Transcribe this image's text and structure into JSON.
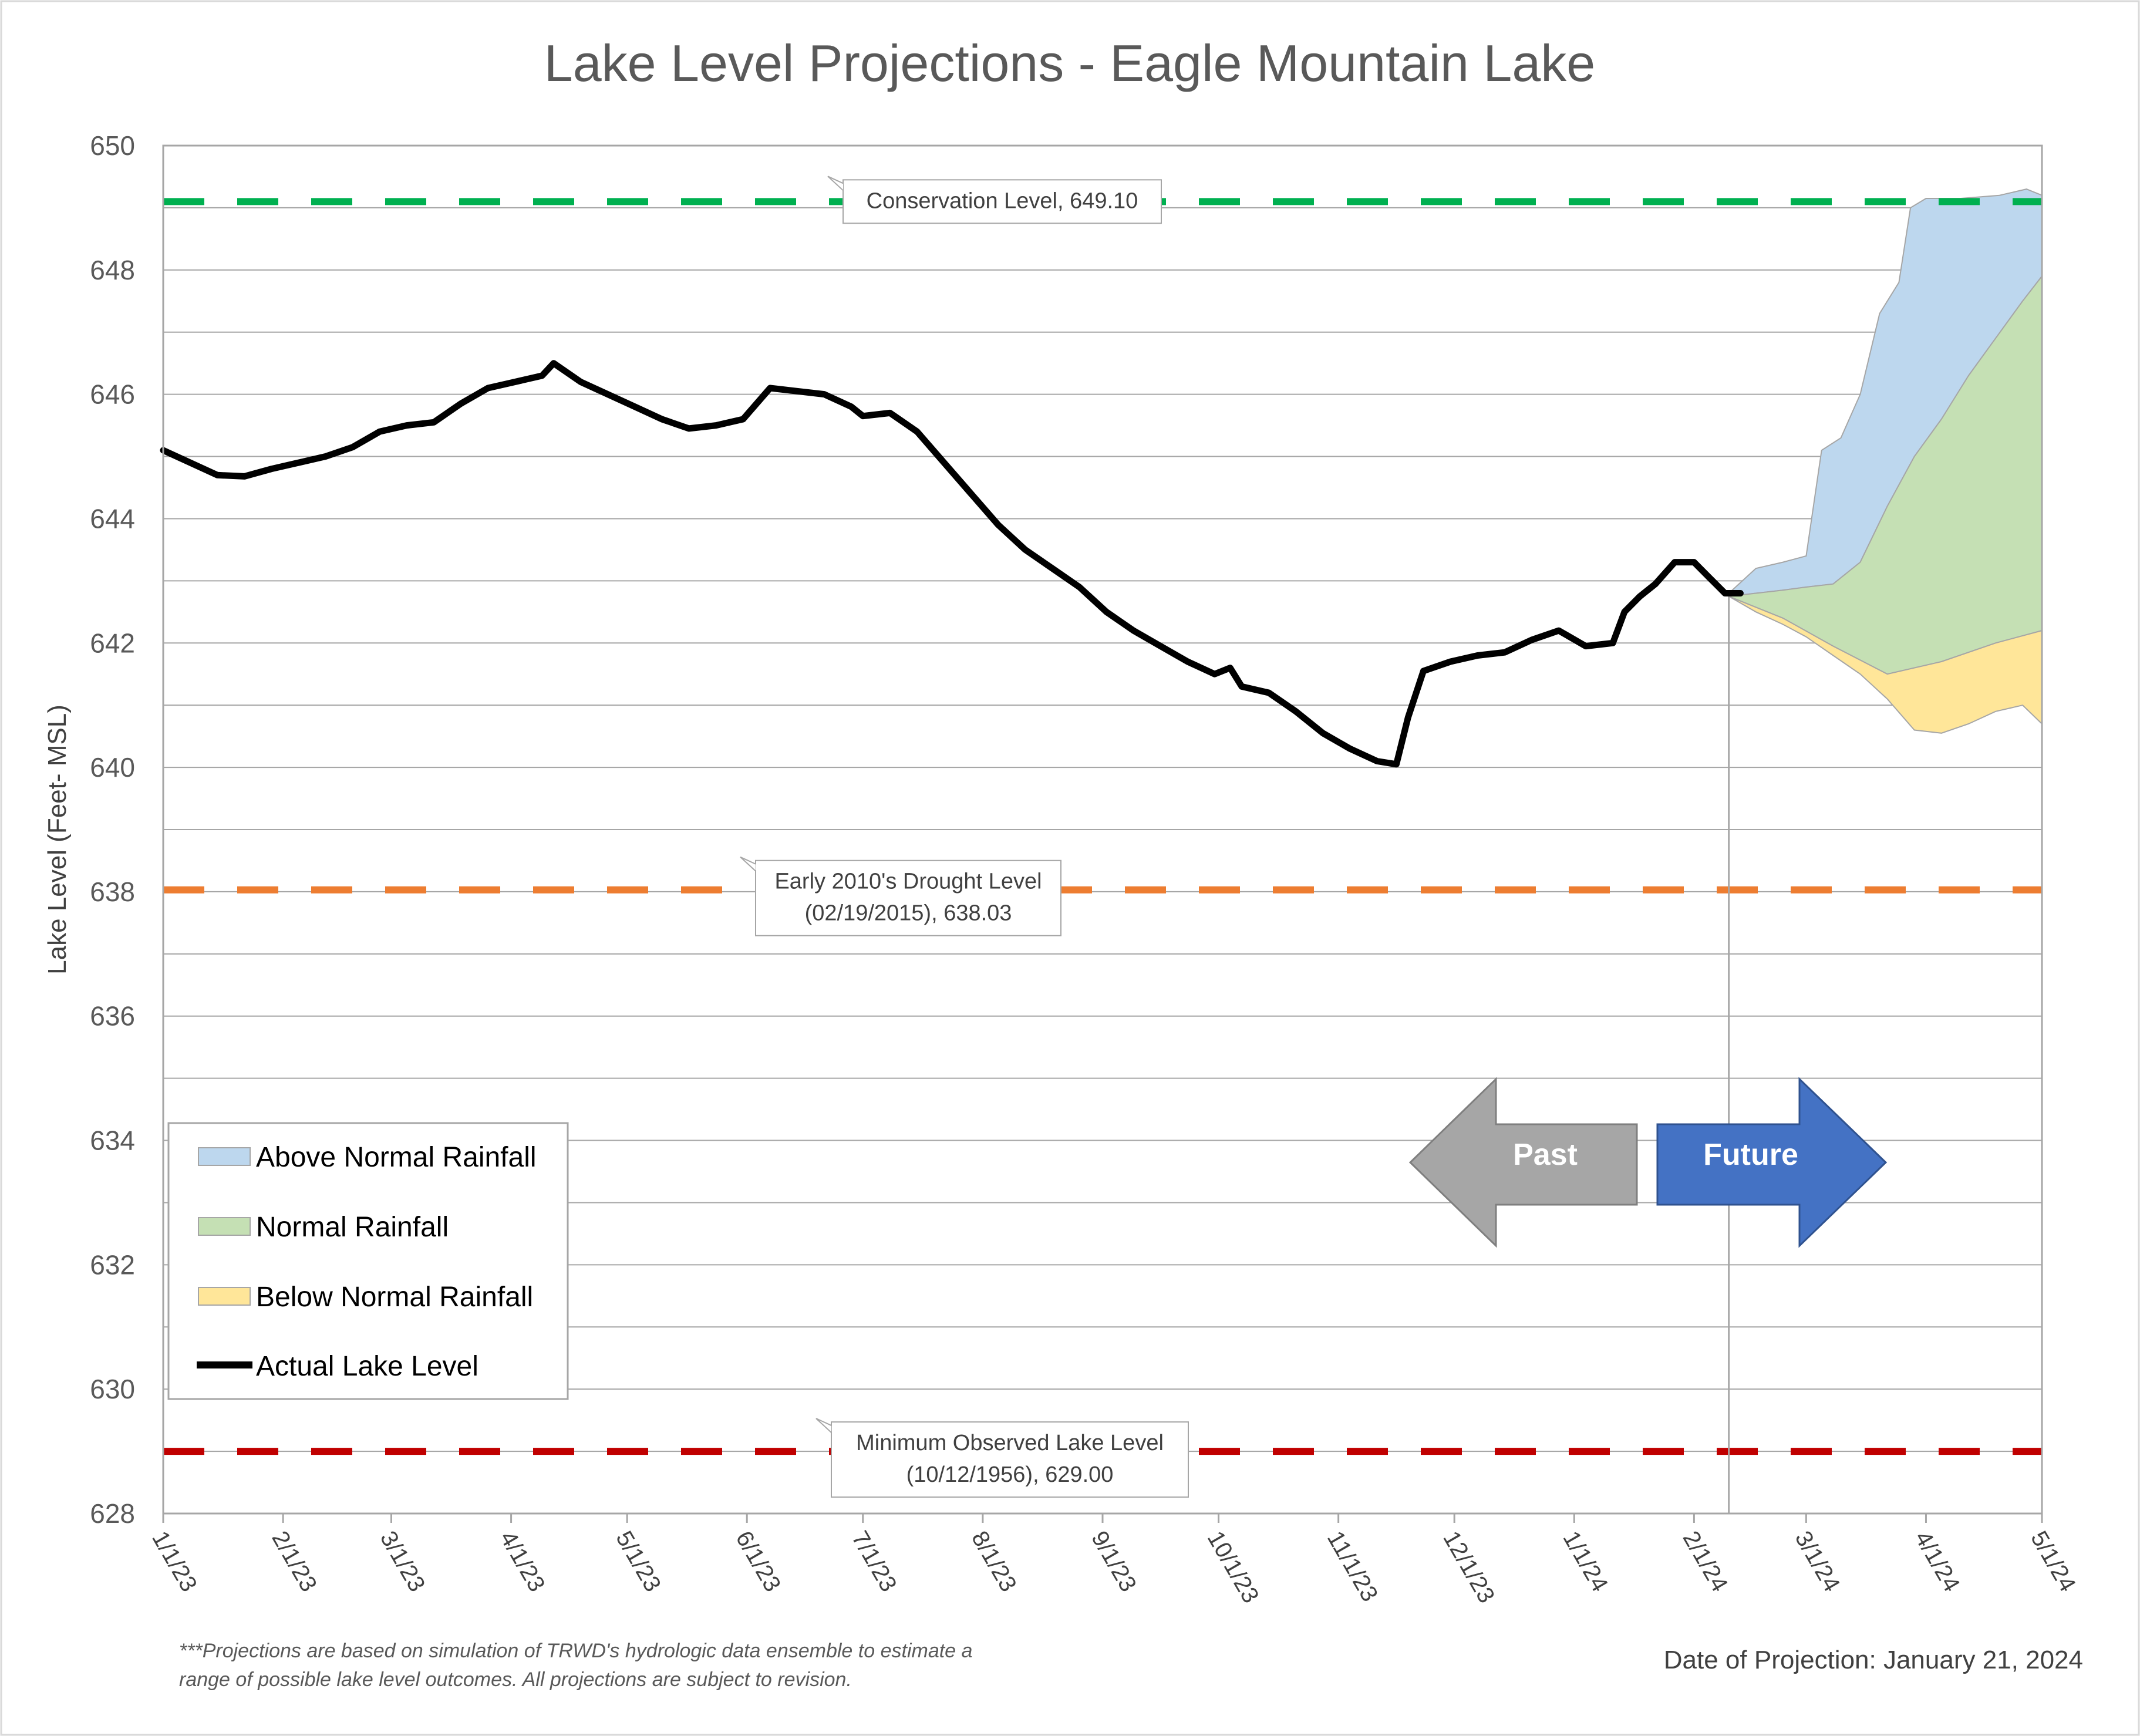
{
  "chart_data": {
    "type": "line",
    "title": "Lake Level Projections - Eagle Mountain Lake",
    "ylabel": "Lake Level (Feet- MSL)",
    "xlabel": "",
    "ylim": [
      628,
      650
    ],
    "y_ticks": [
      "628",
      "630",
      "632",
      "634",
      "636",
      "638",
      "640",
      "642",
      "644",
      "646",
      "648",
      "650"
    ],
    "x_ticks": [
      "1/1/23",
      "2/1/23",
      "3/1/23",
      "4/1/23",
      "5/1/23",
      "6/1/23",
      "7/1/23",
      "8/1/23",
      "9/1/23",
      "10/1/23",
      "11/1/23",
      "12/1/23",
      "1/1/24",
      "2/1/24",
      "3/1/24",
      "4/1/24",
      "5/1/24"
    ],
    "grid": true,
    "legend": {
      "placement": "lower-left",
      "entries": [
        {
          "label": "Above Normal Rainfall",
          "color": "#bdd7ee"
        },
        {
          "label": "Normal Rainfall",
          "color": "#c5e0b4"
        },
        {
          "label": "Below Normal Rainfall",
          "color": "#ffe699"
        },
        {
          "label": "Actual Lake Level",
          "color": "#000000"
        }
      ]
    },
    "reference_lines": [
      {
        "value": 649.1,
        "color": "#00b050",
        "label": "Conservation Level, 649.10"
      },
      {
        "value": 638.03,
        "color": "#ed7d31",
        "label_lines": [
          "Early 2010's Drought Level",
          "(02/19/2015), 638.03"
        ]
      },
      {
        "value": 629.0,
        "color": "#c00000",
        "label_lines": [
          "Minimum Observed Lake Level",
          "(10/12/1956), 629.00"
        ]
      }
    ],
    "projection_date": "2024-01-21",
    "series": [
      {
        "name": "Actual Lake Level",
        "color": "#000000",
        "points": [
          [
            "2023-01-01",
            645.1
          ],
          [
            "2023-01-08",
            644.9
          ],
          [
            "2023-01-15",
            644.7
          ],
          [
            "2023-01-22",
            644.68
          ],
          [
            "2023-01-29",
            644.8
          ],
          [
            "2023-02-05",
            644.9
          ],
          [
            "2023-02-12",
            645.0
          ],
          [
            "2023-02-19",
            645.15
          ],
          [
            "2023-02-26",
            645.4
          ],
          [
            "2023-03-05",
            645.5
          ],
          [
            "2023-03-12",
            645.55
          ],
          [
            "2023-03-19",
            645.85
          ],
          [
            "2023-03-26",
            646.1
          ],
          [
            "2023-04-02",
            646.2
          ],
          [
            "2023-04-09",
            646.3
          ],
          [
            "2023-04-12",
            646.5
          ],
          [
            "2023-04-19",
            646.2
          ],
          [
            "2023-04-26",
            646.0
          ],
          [
            "2023-05-03",
            645.8
          ],
          [
            "2023-05-10",
            645.6
          ],
          [
            "2023-05-17",
            645.45
          ],
          [
            "2023-05-24",
            645.5
          ],
          [
            "2023-05-31",
            645.6
          ],
          [
            "2023-06-07",
            646.1
          ],
          [
            "2023-06-14",
            646.05
          ],
          [
            "2023-06-21",
            646.0
          ],
          [
            "2023-06-28",
            645.8
          ],
          [
            "2023-07-01",
            645.65
          ],
          [
            "2023-07-08",
            645.7
          ],
          [
            "2023-07-15",
            645.4
          ],
          [
            "2023-07-22",
            644.9
          ],
          [
            "2023-07-29",
            644.4
          ],
          [
            "2023-08-05",
            643.9
          ],
          [
            "2023-08-12",
            643.5
          ],
          [
            "2023-08-19",
            643.2
          ],
          [
            "2023-08-26",
            642.9
          ],
          [
            "2023-09-02",
            642.5
          ],
          [
            "2023-09-09",
            642.2
          ],
          [
            "2023-09-16",
            641.95
          ],
          [
            "2023-09-23",
            641.7
          ],
          [
            "2023-09-30",
            641.5
          ],
          [
            "2023-10-04",
            641.6
          ],
          [
            "2023-10-07",
            641.3
          ],
          [
            "2023-10-14",
            641.2
          ],
          [
            "2023-10-21",
            640.9
          ],
          [
            "2023-10-28",
            640.55
          ],
          [
            "2023-11-04",
            640.3
          ],
          [
            "2023-11-11",
            640.1
          ],
          [
            "2023-11-16",
            640.05
          ],
          [
            "2023-11-19",
            640.8
          ],
          [
            "2023-11-23",
            641.55
          ],
          [
            "2023-11-30",
            641.7
          ],
          [
            "2023-12-07",
            641.8
          ],
          [
            "2023-12-14",
            641.85
          ],
          [
            "2023-12-21",
            642.05
          ],
          [
            "2023-12-28",
            642.2
          ],
          [
            "2024-01-04",
            641.95
          ],
          [
            "2024-01-11",
            642.0
          ],
          [
            "2024-01-14",
            642.5
          ],
          [
            "2024-01-18",
            642.75
          ],
          [
            "2024-01-22",
            642.95
          ],
          [
            "2024-01-27",
            643.3
          ],
          [
            "2024-02-01",
            643.3
          ],
          [
            "2024-02-05",
            643.05
          ],
          [
            "2024-02-09",
            642.8
          ],
          [
            "2024-02-13",
            642.8
          ]
        ]
      },
      {
        "name": "Above Normal Rainfall",
        "color": "#bdd7ee",
        "points": [
          [
            "2024-02-10",
            642.8
          ],
          [
            "2024-02-17",
            643.2
          ],
          [
            "2024-02-24",
            643.3
          ],
          [
            "2024-03-01",
            643.4
          ],
          [
            "2024-03-05",
            645.1
          ],
          [
            "2024-03-10",
            645.3
          ],
          [
            "2024-03-15",
            646.0
          ],
          [
            "2024-03-20",
            647.3
          ],
          [
            "2024-03-25",
            647.8
          ],
          [
            "2024-03-28",
            649.0
          ],
          [
            "2024-04-01",
            649.15
          ],
          [
            "2024-04-10",
            649.15
          ],
          [
            "2024-04-20",
            649.2
          ],
          [
            "2024-04-27",
            649.3
          ],
          [
            "2024-05-01",
            649.2
          ]
        ]
      },
      {
        "name": "Normal Rainfall",
        "color": "#c5e0b4",
        "points": [
          [
            "2024-02-10",
            642.75
          ],
          [
            "2024-02-17",
            642.8
          ],
          [
            "2024-02-24",
            642.85
          ],
          [
            "2024-03-01",
            642.9
          ],
          [
            "2024-03-08",
            642.95
          ],
          [
            "2024-03-15",
            643.3
          ],
          [
            "2024-03-22",
            644.2
          ],
          [
            "2024-03-29",
            645.0
          ],
          [
            "2024-04-05",
            645.6
          ],
          [
            "2024-04-12",
            646.3
          ],
          [
            "2024-04-19",
            646.9
          ],
          [
            "2024-04-26",
            647.5
          ],
          [
            "2024-05-01",
            647.9
          ]
        ]
      },
      {
        "name": "Below Normal Rainfall",
        "color": "#ffe699",
        "points": [
          [
            "2024-02-10",
            642.75
          ],
          [
            "2024-02-17",
            642.5
          ],
          [
            "2024-02-24",
            642.3
          ],
          [
            "2024-03-01",
            642.1
          ],
          [
            "2024-03-08",
            641.8
          ],
          [
            "2024-03-15",
            641.5
          ],
          [
            "2024-03-22",
            641.1
          ],
          [
            "2024-03-29",
            640.6
          ],
          [
            "2024-04-05",
            640.55
          ],
          [
            "2024-04-12",
            640.7
          ],
          [
            "2024-04-19",
            640.9
          ],
          [
            "2024-04-26",
            641.0
          ],
          [
            "2024-05-01",
            640.7
          ]
        ]
      },
      {
        "name": "Normal Rainfall lower bound",
        "color": "#c5e0b4",
        "points": [
          [
            "2024-02-10",
            642.75
          ],
          [
            "2024-02-24",
            642.4
          ],
          [
            "2024-03-08",
            641.95
          ],
          [
            "2024-03-22",
            641.5
          ],
          [
            "2024-04-05",
            641.7
          ],
          [
            "2024-04-19",
            642.0
          ],
          [
            "2024-05-01",
            642.2
          ]
        ]
      }
    ]
  },
  "annotations": {
    "past": "Past",
    "future": "Future",
    "footnote_line1": "***Projections are based on simulation of TRWD's hydrologic data ensemble to estimate a",
    "footnote_line2": "range of possible lake level outcomes.  All projections are subject to revision.",
    "projection_label": "Date of Projection: January 21, 2024"
  }
}
